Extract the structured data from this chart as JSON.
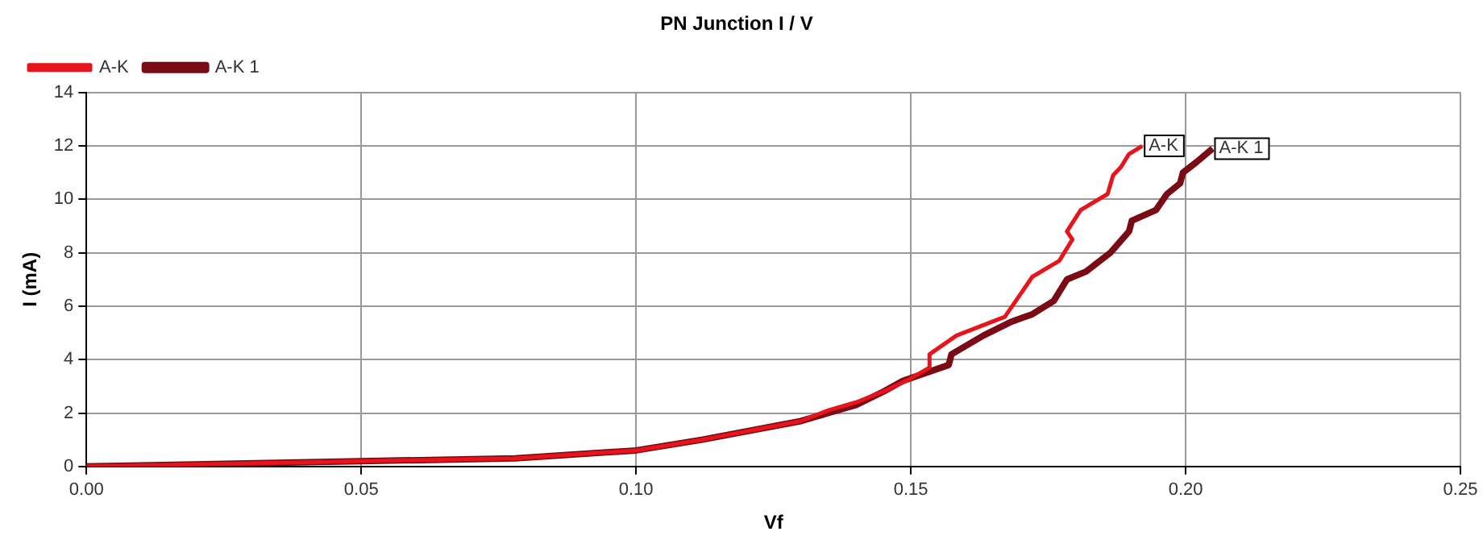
{
  "chart_data": {
    "type": "line",
    "title": "PN Junction I / V",
    "xlabel": "Vf",
    "ylabel": "I (mA)",
    "xlim": [
      0,
      0.25
    ],
    "ylim": [
      0,
      14
    ],
    "xticks": [
      {
        "value": 0,
        "label": "0.00"
      },
      {
        "value": 0.05,
        "label": "0.05"
      },
      {
        "value": 0.1,
        "label": "0.10"
      },
      {
        "value": 0.15,
        "label": "0.15"
      },
      {
        "value": 0.2,
        "label": "0.20"
      },
      {
        "value": 0.25,
        "label": "0.25"
      }
    ],
    "yticks": [
      0,
      2,
      4,
      6,
      8,
      10,
      12,
      14
    ],
    "grid": true,
    "legend": "top left",
    "marker": "none",
    "line_style": "solid",
    "series": [
      {
        "name": "A-K",
        "color": "#e8141b",
        "x": [
          0,
          0.05,
          0.078,
          0.1,
          0.112,
          0.13,
          0.135,
          0.14,
          0.145,
          0.15,
          0.1534,
          0.1534,
          0.1583,
          0.1671,
          0.1691,
          0.1721,
          0.177,
          0.1794,
          0.1784,
          0.1809,
          0.1858,
          0.1868,
          0.1882,
          0.1897,
          0.1921
        ],
        "values": [
          0,
          0.2,
          0.3,
          0.6,
          1.0,
          1.7,
          2.1,
          2.4,
          2.8,
          3.3,
          3.7,
          4.2,
          4.9,
          5.6,
          6.2,
          7.1,
          7.7,
          8.5,
          8.8,
          9.6,
          10.2,
          10.9,
          11.2,
          11.7,
          12.0
        ]
      },
      {
        "name": "A-K 1",
        "color": "#7a0a14",
        "x": [
          0,
          0.05,
          0.078,
          0.1,
          0.112,
          0.13,
          0.135,
          0.14,
          0.145,
          0.1485,
          0.1569,
          0.1574,
          0.1632,
          0.1681,
          0.1721,
          0.176,
          0.1784,
          0.1819,
          0.1863,
          0.1897,
          0.1902,
          0.1946,
          0.1966,
          0.199,
          0.1995,
          0.202,
          0.2049
        ],
        "values": [
          0,
          0.2,
          0.3,
          0.6,
          1.0,
          1.7,
          2.0,
          2.3,
          2.8,
          3.2,
          3.8,
          4.2,
          4.9,
          5.4,
          5.7,
          6.2,
          7.0,
          7.3,
          8.0,
          8.8,
          9.2,
          9.6,
          10.2,
          10.6,
          11.0,
          11.4,
          11.9
        ]
      }
    ],
    "annotations": [
      {
        "text": "A-K",
        "x": 0.1921,
        "y": 12.0
      },
      {
        "text": "A-K 1",
        "x": 0.2049,
        "y": 11.9
      }
    ]
  }
}
